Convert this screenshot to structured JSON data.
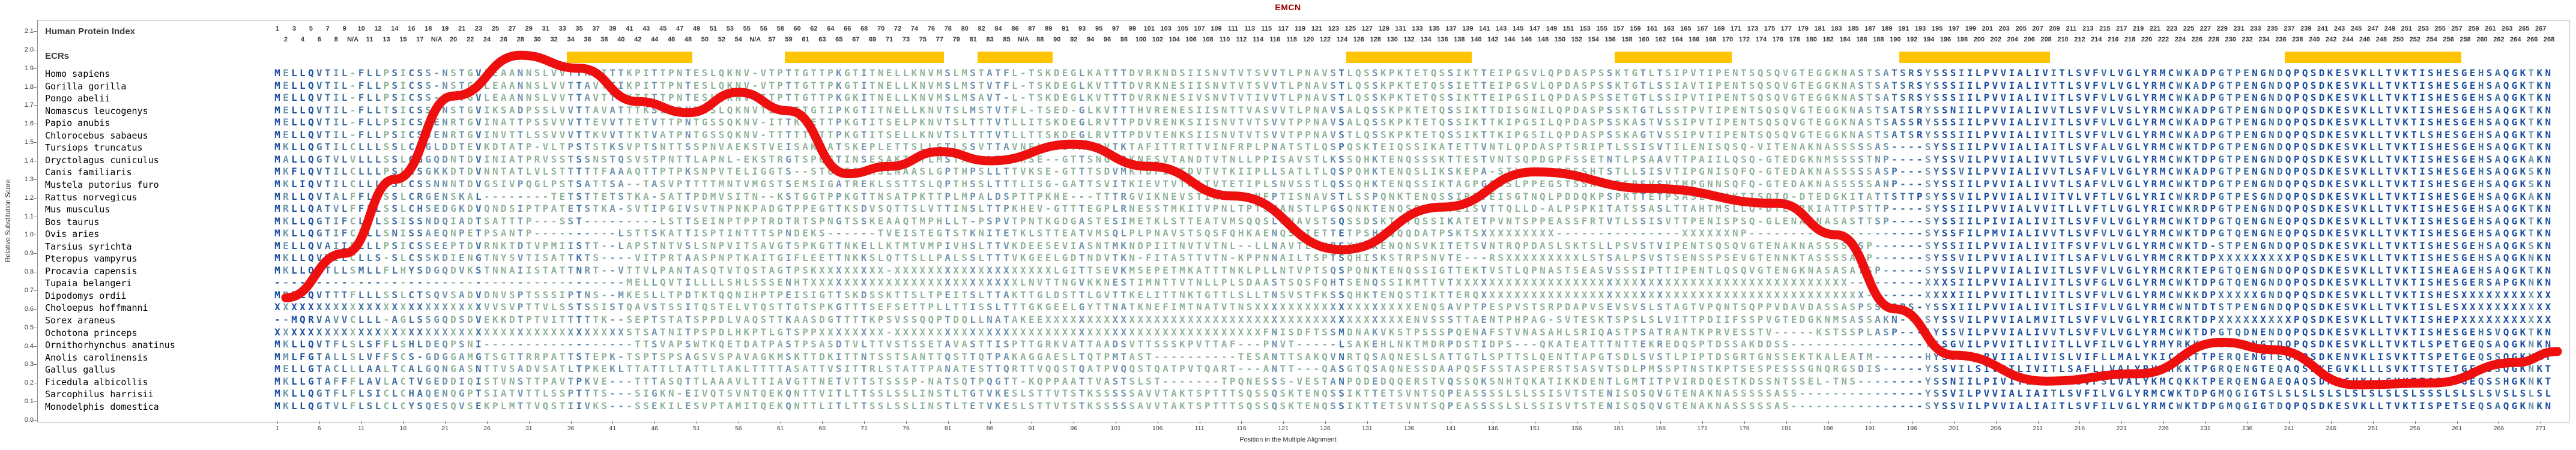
{
  "title": "EMCN",
  "header": {
    "human_protein_index_label": "Human Protein Index",
    "ecrs_label": "ECRs",
    "ruler_na_label": "N/A"
  },
  "y_axis": {
    "label": "Relative Substitution Score",
    "min": 0.0,
    "max": 2.1,
    "step": 0.1
  },
  "x_axis": {
    "label": "Position in the Multiple Alignment",
    "tick_start": 1,
    "tick_step": 5
  },
  "colors": {
    "ecr_block": "#FFC400",
    "curve": "#ee0f0f",
    "conserved_high": "#1b4fa0",
    "conserved_mid": "#41719f",
    "conserved_low": "#6f94ad",
    "variable": "#8fb39a",
    "title": "#990000"
  },
  "ecr_blocks": [
    {
      "start_col": 36,
      "end_col": 50
    },
    {
      "start_col": 62,
      "end_col": 80
    },
    {
      "start_col": 85,
      "end_col": 93
    },
    {
      "start_col": 129,
      "end_col": 143
    },
    {
      "start_col": 161,
      "end_col": 174
    },
    {
      "start_col": 195,
      "end_col": 212
    },
    {
      "start_col": 241,
      "end_col": 261
    }
  ],
  "species": [
    {
      "name": "Homo sapiens",
      "sequence": "MELLQVTIL-FLLPSICSS-NSTGVLEAANNSLVVTTAVTTTKPITTPNTESLQKNV-VTPTTGTTPKGTITNELLKNVMSLMSTATFL-TSKDEGLKATTTDVRKNDSIISNVTVTSVVTLPNAVSTLQSSKPKTETQSSIKTTEIPGSVLQPDASPSSKTGTLTSIPVTIPENTSQSQVGTEGGKNASTSATSRSYSSSIILPVVIALIVITLSVFVLVGLYRMCWKADPGTPENGNDQPQSDKESVKLLTVKTISHESGEHSAQGKTKN"
    },
    {
      "name": "Gorilla gorilla",
      "sequence": "MELLQVTIL-FLLPSICSS-NSTGVLEAANNSLVVTTAVTTIKPITTPNTESLQKNV-VTPTTGTTPKGTITNELLKNVMSLMSTVTFL-TSKDEGLKVTTTDVRKNESIISNVTVTSVVTLPNAVSTLQSSKPKTETQSSIETTEIPGSVLQPDASPSSKTGTLSSIAVTIPENTSQSQVGTEGGKNASTSATSRSYSSSIILPVVIALIVTTLSVFVLVGLYRMCWKADPGTPENGNDQPQSDKESVKLLTVKTISHESGEHSAQGKTKN"
    },
    {
      "name": "Pongo abelii",
      "sequence": "MELLQVTIL-FLLPSICSS-NSTGVLEAANNSLVVTTAVTTIKTITTPNTESLQKNV-ITPTTGTTPKGKITNELLKNVMSLMSAVT-L-TSKDEGLKVTTTDVRKNESIVSNVTVTIVVTLPNAVSTLQSSKPKTETQSSIKTTEIPGSILQPDASPSSETGTLSSIPVTIPENTSQSQVGTEGGKNASTSATSRSYSSSIILPVVIALIVITLSVFVLVGLYRMCWKADPGTPENGNDQPQSDKESVKLLTVKTISHESGEHSAQGKTKN"
    },
    {
      "name": "Nomascus leucogenys",
      "sequence": "MELLQVTIL-FLLTSICSS-NSTGVIKSADPSSLVVTTAVATTTKSITPNTESLQKNVTITPTTGTIPKGTITNELLKNVTSLMSTVTFL-TSED-GLKVTTTHVRENESIISNTTVASVVTLPNAVSALQSSKPKTETQSSIKTTDISGNILQPDASPSSKTGTLSSTPVTIPENTSQSQVGTEGGKNASTSATSRSYSSNIILPVVIALIVVTLSVFVLVSLYRMCWKADPGTPENGNDQPQSDKESVKLLTVKTISHESGEHSAQGKTKN"
    },
    {
      "name": "Papio anubis",
      "sequence": "MELLQVTIL-FLLPSICSSENRTGVINATTPSSVVVTTEVVTTETVTTPNTGSSQKNV-ITTKNETTPKGTITSELPKNVTSLTTTVTLLITSKDEGLRVTTPDVRENKSIISNVTVTSVVTPPNAVSALQSSKPKTETQSSIKTTKIPGSILQPDASPSSKASTVSSIPVTIPENTSQSQVGTEGGKNASTSASSRSYSSSIILPVVIALIVITLSVFVLVGLYRMCWKADPGTPENGNDQPQSDKESVKLLTVKTISHESGEHSAQGKTKN"
    },
    {
      "name": "Chlorocebus sabaeus",
      "sequence": "MELLQVTIL-FLLPSICSSENRTGVINVTTLSSVVVTTKVVTTKTVATPNTGSSQKNV-TTTTTETTPKGTITSELLKNVTSLTTTVTLLTTSKDEGLRVTTPDVTENKSIISNVTVTSVVTPPNAVSTLQSSKPKTETQSSIKTTKIPGSILQPDASPSSKAGTVSSIPVTIPENTSQSQVGTEGGKNASTSATSRSYSSSIILPVVIALIVITLSVFVLVGLYRMCWKADPGTPENGNDQPQSDKESVKLLTVKTLSHESGEHSAQGKTKN"
    },
    {
      "name": "Tursiops truncatus",
      "sequence": "MKLLQGTILCLLLSSLCSGLDDTEVKDTATP-VLTPSTSTKSVPTSNTTSSPNVAEKSTVEISAKGATSKEPLETTSLLSTLSSVTTAVNEL-GSTAKGVTKTAFITTRTTVINFRPLPNATSTLQSPQSKTEIQSSIKATETTVNTLQPDASPTSRIPTLSSISVTILENISQSQ-VITENAKNASSSSSASSYSSIILPVVIALIAITLSVFALVGLYRMCWKTDPGTPENGNDQPQSDKESVKLLTVKTISHESGEHSAQGKTKN"
    },
    {
      "name": "Oryctolagus cuniculus",
      "sequence": "MALLQGTVLVLLLSSLGGGQDNTDVINIATPRVSSTSSNSTQSVSTPNTTLAPNL-EKSTRGTSPQGTINSESAKTTTLMSTAPSLTTVKSE--GTTSNGVPKNESVTANDTVTNLLPPISAVSTLKSSQHKTENQSSSKTTESTVNTSQPDGPFSSETNTLPSAAVTTPAIILQSQ-GTEDGKNMSSSSTNPSYSSVILPVVIALIVVTLSVFVLVGLYRMCWKTDPGTPENGNDQPQSDKESVKLLTVKTISHESGEHSAQGKAKN"
    },
    {
      "name": "Canis familiaris",
      "sequence": "MKFLQVTILCLLLPSLCSGKKDTDVNNTATLVLSTTTTTFAAAQTTPTPKSNPVTELIGGTS--STGIISKKSLNAASLGPTHPSLLTTVKSE-GTTTSDVMKTDFIGTDVTVTKIIPLLSATLTLQSPQHKTENQSLIKSKEPA-STLQPDASPSSHTSTLLSISVTIPGNISQFQ-GTEDAKNASSSSSASPSYSSVILPVVIALIVVTLSAFVLVGLYRMCWKADPGTPENGNDQPQSDKESVKLLTVKTISHESGEHSAQGKSKN"
    },
    {
      "name": "Mustela putorius furo",
      "sequence": "MKLIQVTILCLLLPSLCSSNNNTDVGSIVPQGLPSTSATTSA--TASVPTTTTMNTVMGSTSEMSIGATREKLSSTTSLQPTHSSLTTTLISG-GATTSVITKIEVTVTNATVTETIPLSNVSSTLQSSQHKTENQSSIKTAGPGESSLPPEGSTSSHTSTSPSVSVTMPGNNSQFQ-GTEDAKNASSSSSANPSYSSIILPVVIALIVVTLSAFVLVGLYRMCWKTDPGTPENGNDQPQSDKESVKLLTVKTISHESGEHSAQGKSKN"
    },
    {
      "name": "Rattus norvegicus",
      "sequence": "MRLLQVTALFFLLSSLCRGENSKAL--------TETSTTETSTKA-SATTPDMVSITN--KSTGGTPPKGTTNSATPKTTPLMPALDSPTTPKHE---TTTRGVIKNEVSTIKTTVANFPTISNAVSTLSSPQNKTENQSSIRTTEISGTNQLPDDQKPSPKTTETPSASLTTAKTISQIQ-DTEDGKITATTSTTPSYSSVILPVVIALIVITVLVFTLVGLYRICWKRDPGTPESGNDQPQSDKESVKLLTVKTISHESGEHSAQGKAKN"
    },
    {
      "name": "Mus musculus",
      "sequence": "MRLLQATVLFFLLSSLCHSEDGKDVQNDSIPTPATETSTKA-SVTIPGIVSVTNPNKPADGTPPEGTTKSDVSQTTSLVTTINSLTTPKHEV-GTTTEGPLRNESSTMKITVPNLTPTSNANSTLPGSQNKTENQSSIRTTEISVTTQLLD-ALPSPKITATSSASLTTAHTMSLLQ-DTEDRKIATTPSTTPSYSSIILPVVIALVVITLLVFTLVGLYRICWKRDPGTPENGNDQPQSDKESVKLLTVKTISHESGEHSAQGKTKN"
    },
    {
      "name": "Bos taurus",
      "sequence": "MKLLQGTIFCLLLSSISSNDQIADTSATTTP---SST---------LSTTSEINPTPPTRDTRTSPNGTSSKEAAQTMPHLLT-PSPVTPNTKGDGASTESIMETKLSTTEATVMSQQSLSNAVSTSQSSDSKTETQSSIKATETPVNTSPPEASSFRTVTLSSISVTTPENISPSQ-GLENAKNASASTTSPSYSSIILPIVIALIVITLSVFVLVGLYRMCWKTDPGTQENGNEQPQSDKESVKLLTVKTISHESGEHSAQGKTKN"
    },
    {
      "name": "Ovis aries",
      "sequence": "MKLLQGTIFCLLLSNISSAEQNPETPSANTP----------LSTTSKATTISPTINTTTSPNDEKS------TVEISTEGTSTKNITETKLSTTEATVMSQLPLPNAVSTSQSFQHKAENQSSIETTETPSHTQQQDATPSKTSXXXXXXXXX---------------XXXXXXNPSYSSFILPMVIALIVVTLSVFVLVGLYRMCWKTDPGTQENGNEQPQSDKESVKLLTVKTISHESGEHSAQGKTKN"
    },
    {
      "name": "Tarsius syrichta",
      "sequence": "MELLQVAIIFLLLPSICSSEEPTDVRNKTDTVPMIISTT--LAPSTNTVSLSNPVITSAVGTSPKGTTNKELLKTMTVMPIVHSLTTVKDEESEVIASNTMKNDPIITNVTVTNL--LLNAVTLQVPSXXXXENQNSVKITETSVNTRQPDASLSKTSLLPSVSTVIPENTSQSQVGTENAKNASSSSASPSYSSIILPVVIALIVITFSVFVLVGLYRMCWKTD-STPENGNDQPQSDKESVKLLTVKTISHESGEHSAQGKSKN"
    },
    {
      "name": "Pteropus vampyrus",
      "sequence": "MKLLQVTILCLLS-SLCSSKDIENGTNYSVTISATTKTS----VITPRTAASPNPTKAITGIFLEETTNKKSLQTTSLLPALSSLTTTVKGEELGDTNDVTKN-FITASTTVTN-KPPNNAILTSPTSQHISKSTRPSNVTE---RSXXXXXXXXXLSTSALPSVSTSENSSPSEVGTENNKTASSSSASPSYSSVILPVVIALIVITLSAFVLVGLYRMCRKTDPXXXXXXXXXPQSDKESVKLLTVKTISHESGEHSAQGKNKN"
    },
    {
      "name": "Procavia capensis",
      "sequence": "MKLLQGTLLSMLLFLHYSDGQDVKSTNNAIISTATTNRT--VTTVLPANTASQTVTQSTAGTPSKXXXXXXXX-XXXXXXXXXXXXXXXXXXXLGITTSEVKMSEPETMKATTTNKLPLLNTVPTSQSPQNKTENQSSIGTTEKTVSTLQPNASTSEASVSSSIPTTIPENTLQSQVGTENGKNASASATSPSYSSVILPVVIALIVITLSVFVLVGLYRMCRKTEPGTQENGNDQPQSDKESVKLLTVKTISHEAGEHSAQGKTKN"
    },
    {
      "name": "Tupaia belangeri",
      "sequence": "------------------------------------------MELLQVTILLLLSHLSSSENHTXXXXXXXXXXXXXXXXXXXXXXXXXLNVTTNGVKKNESTIMNTTVTNLLPLSDAASTSQSFQHTSENQSSIKMTTVTXXXXXXXXXXXXXXXXXXXXXXXXXXXXXXXXXXXXXXXXXXXXXXXXXXSIILPVVIALIVITLSVFGLVGLYRMCWKTDPGTQENGNDQPQSDKESVKLLTVKTISHESGERSAPGKNKN"
    },
    {
      "name": "Dipodomys ordii",
      "sequence": "MRFLQVTTTFLLLSSLCTSQVSADVDNVSPTSSSIPTNS--MKESLLTPDTKTQQNIHPTPEISIGTTSKDSSKTTSLTPEITSLTTAKTTGLDSTTLGVTTKELITTNKTGTTLSLLTNSVSTFKSSQHKTENQSTIKTTERQXXXXXXXXXXXXXXXXXXXXXXXXXXXXXXXXXXXXXXXXXXXXXXXXXXIILPVVITLIVITLSVFVLVGLYRMCWKKDPXXXXXGNDQPQSDKESVKLLTVKTISHESXXXXXXXXXXX"
    },
    {
      "name": "Choloepus hoffmanni",
      "sequence": "XXXXXXXXXXXXXXXXXXXXXXXXXVVSVPTTVLSSTSSISTQAVSTSSITQSTELVTQSTTGTSPKGTTTSEFSETTPLLTTISSLTTTGKGEELGYTTNATKNEFIMTNATVTNSXXXXXXXXXXXXXXXXXXXENQSAVPTPESPVSTSRPDAPVSEVSVSLSTAGTVPQNTSQPPVDAVDASSASPSSTSPSYSSXIILPVVIALIVITLSIFVLVGLYRMCWNTDTSTPENGNDQPQSDKESVKLLTVKTISLESXXXXXXXXXXX"
    },
    {
      "name": "Sorex araneus",
      "sequence": "--MQRVAVVCLLL-AGLSSGQDSDVEKKDTPTVITTTTTK--SEPTSTATSPPDLVAQSTTKAASDGTTTTKPSVSSQQPTDQLLNATAKEEXXXXXXXXXXXXXXXXXXXXXXXXXXXXXXXXXXXXXXXXXXXENVSSSTTAENTPHPAG-SVTESKTSPSLSLVITTPDIIFSSPVGTEDGKNMSASSAKNSYSSVILPVVIALMVITLSVFVLVGLYRICRKTDPXXXXXXXXXPQSDKESVKLLTVKTISHEPXXXXXXXXXXX"
    },
    {
      "name": "Ochotona princeps",
      "sequence": "XXXXXXXXXXXXXXXXXXXXXXXXXXXXXXXXXXXXXXXXXXSTSATNITPSPDLHKPTLGTSPPXXXXXXXX-XXXXXXXXXXXXXXXXXXXXXXXXXXXXXXXXXXXXXXXXXXXXFNISDFTSSMDNAKVKSTPSSSPQENAFSTVNASAHLSRIQASTPSATRANTKPRVESSTV-----KSTSSPLASPAYSSVILPVVIALIVVTLSVFVLVGLYRMCWKTDPGTQDNENDQPQSDKESVKLLTVKTISHESGEHSVQGKTKN"
    },
    {
      "name": "Ornithorhynchus anatinus",
      "sequence": "MKLLQVTFLSLSFFLSHLDEQPSNI------------------TTSVAPSWTKQETDATPASTPSASDTVLTTVSTSSETAVASTTISPTTGRKVATTAADSVTTSSSKPVTTAF---PNVT-----LSAKEHLNKTMDRPDSTIDPS---QKATEATTTNTTEKREDQSPTDSSAKDDSS-----------YSSGVILPVVITLIVITLLVFILVGLYRMYRKKDPGSPDNGTDQPQSDKESVKLLTVKTLSPETGEQSAQGKNKN"
    },
    {
      "name": "Anolis carolinensis",
      "sequence": "MMLFGTALLSLVFFSCS-GDGGAMGTSGTTRRPATTSTEPK-TSPTSPSAGSVSPAVAGKMSKTTDKITTNTSSTSANTTQSTTQTPAKAGGAESLTQTPMTAST----------TESANTTSAKQVNRTQSAQNESLSATTGTLSPTTSLQENTTAPGTSDLSVSTLPIPTDSGRTGNSSEKTKALEATMHYSSILLPVIIALIVISLVIFLLMALYKICLKTTPERQENGTEQAPSDKENVKLISVKTTSPETGEQSSQGKNKT"
    },
    {
      "name": "Gallus gallus",
      "sequence": "MELLGTACLLLAALTCALGQNGASNTTVSADVSATLTPKEKLTTATTLTATTLTAKLTTTTASATTVSITTRLSTATTPANATESTTQRTTVQQSTQATPVQQSTQATPVTQART---ANTT---QASGTQSAQNESSDAAPQSFSSTASPERSTSASVTSDLPMSSPTNSTKPTSESPESSSGNQRGSDISYSSVILSIVITLIVITLSAFLLVALYRVCHKKTPGRQENGTEQAQSDKEGVKLLLSVKTTSTETGENSSQGKNKT"
    },
    {
      "name": "Ficedula albicollis",
      "sequence": "MKLLGTAFFFLAVLACTVGEDDIQISTVNSTTPAVTPKVE---TTTASQTTLAAAVLTTIAVGTTNETVTTSTSSSP-NATSQTPQGTT-KQPPAATTVASTSLST-------TPQNESSS-VESTANPQDEDQQERSTVQSSQKSNHTQKATIKKDENTLGMTITPVIRDQESTKDSSNTSSEL-TNSYSSNIILPIVITLIVITLSVFSLVALYKMCQKKTPERQENGAEQAQSDKEGVKLLSVKTTSPETGEQSSHGKNKT"
    },
    {
      "name": "Sarcophilus harrisii",
      "sequence": "MKLLQGTFLFLSICLCHAQENQGPTSIATVTTLSSPTTTS---SIGKN-EIVQTSVNTQEKQNTTVITLTTSSLSSLINSTLTGTVKESLSTTVTSTKSSSSSAVVTAKTSPTTTSQSSQSKTENQSSIKTTETSVNTSQPEASSSSLSLSSISVTSTENISQSQVGTENAKNASSSSSASSYSSVILPVVIALIAITLSVFILVGLYRMCWKTDPGMQGIGTSLSLSLSLSLSLSLSLSLSSSLSLSLSVSLSLSL"
    },
    {
      "name": "Monodelphis domestica",
      "sequence": "MKLLQGTVLFLSLCLCYSQESQVSEKPLMTTVQSTIIVKS---SSEKILESVPTAMITQEKQNTTLITLTTSSLSSLINSTLTETVKESLSTTVTSTKSSSSSAVVTAKTSPTTTSQSSQSKTENQSSIKTTETSVNTSQPEASSSSLSLSSISVTSTENISQSQVGTENAKNASSSSSASSYSSVILPVVIALIAITLSVFILVGLYRMCWKTDPGMQGIGTDQPQSDKESVKLLTVKTISPETSEQSAQGKNKN"
    }
  ],
  "chart_data": {
    "type": "line",
    "title": "EMCN",
    "xlabel": "Position in the Multiple Alignment",
    "ylabel": "Relative Substitution Score",
    "ylim": [
      0.0,
      2.1
    ],
    "grid": false,
    "legend_position": "none",
    "series": [
      {
        "name": "Relative Substitution Score",
        "points": [
          [
            2,
            0.66
          ],
          [
            9,
            0.9
          ],
          [
            15,
            1.3
          ],
          [
            22,
            1.75
          ],
          [
            30,
            1.97
          ],
          [
            37,
            1.9
          ],
          [
            44,
            1.72
          ],
          [
            50,
            1.66
          ],
          [
            56,
            1.77
          ],
          [
            62,
            1.67
          ],
          [
            69,
            1.33
          ],
          [
            74,
            1.37
          ],
          [
            80,
            1.45
          ],
          [
            86,
            1.4
          ],
          [
            96,
            1.49
          ],
          [
            105,
            1.37
          ],
          [
            115,
            1.21
          ],
          [
            128,
            0.92
          ],
          [
            140,
            1.15
          ],
          [
            151,
            1.34
          ],
          [
            165,
            1.25
          ],
          [
            180,
            1.17
          ],
          [
            187,
            1.0
          ],
          [
            194,
            0.6
          ],
          [
            201,
            0.35
          ],
          [
            212,
            0.21
          ],
          [
            223,
            0.25
          ],
          [
            233,
            0.42
          ],
          [
            239,
            0.38
          ],
          [
            249,
            0.19
          ],
          [
            258,
            0.2
          ],
          [
            268,
            0.31
          ],
          [
            273,
            0.37
          ]
        ]
      }
    ]
  }
}
